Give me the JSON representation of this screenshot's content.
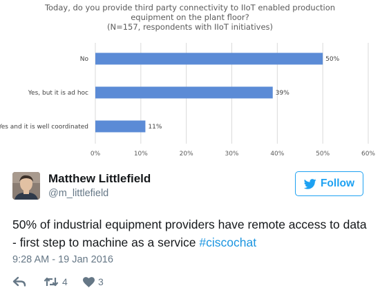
{
  "chart_data": {
    "type": "bar",
    "orientation": "horizontal",
    "title_lines": [
      "Today, do you provide third party connectivity to IIoT enabled production",
      "equipment on the plant floor?",
      "(N=157, respondents with IIoT initiatives)"
    ],
    "categories": [
      "No",
      "Yes, but it is ad hoc",
      "Yes and it is well coordinated"
    ],
    "values": [
      50,
      39,
      11
    ],
    "data_labels": [
      "50%",
      "39%",
      "11%"
    ],
    "x_ticks": [
      "0%",
      "10%",
      "20%",
      "30%",
      "40%",
      "50%",
      "60%"
    ],
    "xlim": [
      0,
      60
    ],
    "grid": true,
    "bar_color": "#5b8bd6"
  },
  "tweet": {
    "display_name": "Matthew Littlefield",
    "handle": "@m_littlefield",
    "follow_label": "Follow",
    "text_before": "50% of industrial equipment providers have remote access to data - first step to machine as a service ",
    "hashtag": "#ciscochat",
    "timestamp": "9:28 AM - 19 Jan 2016",
    "retweet_count": "4",
    "like_count": "3"
  },
  "icons": {
    "avatar": "avatar",
    "follow": "twitter-bird-icon",
    "reply": "reply-icon",
    "retweet": "retweet-icon",
    "like": "heart-icon"
  },
  "colors": {
    "twitter_blue": "#1da1f2",
    "hashtag": "#1b95e0",
    "secondary_text": "#657786",
    "primary_text": "#14171a"
  }
}
